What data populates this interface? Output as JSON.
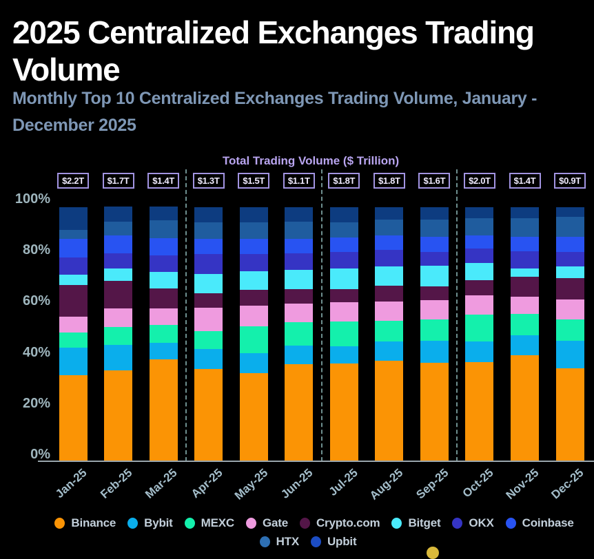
{
  "header": {
    "title": "2025 Centralized Exchanges Trading Volume",
    "subtitle": "Monthly Top 10 Centralized Exchanges Trading Volume, January - December 2025"
  },
  "chart": {
    "axis_title": "Total Trading Volume ($ Trillion)",
    "total_labels": [
      "$2.2T",
      "$1.7T",
      "$1.4T",
      "$1.3T",
      "$1.5T",
      "$1.1T",
      "$1.8T",
      "$1.8T",
      "$1.6T",
      "$2.0T",
      "$1.4T",
      "$0.9T"
    ],
    "y_tick_labels": [
      "100%",
      "80%",
      "60%",
      "40%",
      "20%",
      "0%"
    ]
  },
  "chart_data": {
    "type": "bar",
    "stacked": true,
    "title": "Total Trading Volume ($ Trillion)",
    "unit": "percent share of monthly top-10 trading volume",
    "categories": [
      "Jan-25",
      "Feb-25",
      "Mar-25",
      "Apr-25",
      "May-25",
      "Jun-25",
      "Jul-25",
      "Aug-25",
      "Sep-25",
      "Oct-25",
      "Nov-25",
      "Dec-25"
    ],
    "monthly_totals_trillion_usd": [
      2.2,
      1.7,
      1.4,
      1.3,
      1.5,
      1.1,
      1.8,
      1.8,
      1.6,
      2.0,
      1.4,
      0.9
    ],
    "ylim": [
      0,
      100
    ],
    "grid": false,
    "legend_position": "bottom",
    "quarter_separators_after_index": [
      2,
      5,
      8
    ],
    "series": [
      {
        "name": "Binance",
        "color": "#FB9405",
        "values": [
          33.0,
          34.7,
          38.9,
          35.3,
          33.8,
          37.1,
          37.4,
          38.5,
          37.7,
          38.0,
          40.4,
          35.6
        ]
      },
      {
        "name": "Bybit",
        "color": "#0AAEEC",
        "values": [
          10.5,
          9.9,
          6.3,
          7.5,
          7.4,
          7.2,
          6.5,
          7.4,
          8.4,
          7.7,
          7.8,
          10.5
        ]
      },
      {
        "name": "MEXC",
        "color": "#14F0AC",
        "values": [
          5.7,
          6.8,
          6.8,
          6.9,
          10.5,
          8.8,
          9.4,
          7.9,
          8.1,
          10.3,
          8.1,
          8.1
        ]
      },
      {
        "name": "Gate",
        "color": "#EF9BDF",
        "values": [
          6.2,
          6.9,
          6.3,
          8.9,
          7.7,
          7.2,
          7.5,
          7.2,
          7.3,
          7.5,
          6.7,
          7.7
        ]
      },
      {
        "name": "Crypto.com",
        "color": "#541648",
        "values": [
          11.9,
          10.6,
          7.7,
          5.5,
          6.1,
          5.4,
          5.0,
          6.1,
          5.4,
          5.8,
          7.5,
          8.1
        ]
      },
      {
        "name": "Bitget",
        "color": "#4AEAFB",
        "values": [
          4.1,
          4.9,
          6.3,
          7.5,
          7.2,
          7.5,
          8.0,
          7.4,
          7.8,
          6.6,
          3.3,
          4.5
        ]
      },
      {
        "name": "OKX",
        "color": "#3534C4",
        "values": [
          6.4,
          5.7,
          6.3,
          7.7,
          6.5,
          6.3,
          6.1,
          6.3,
          5.2,
          5.4,
          6.6,
          5.4
        ]
      },
      {
        "name": "Coinbase",
        "color": "#2853F2",
        "values": [
          7.3,
          6.9,
          6.7,
          5.8,
          5.7,
          5.4,
          5.6,
          5.4,
          5.9,
          4.9,
          5.4,
          5.9
        ]
      },
      {
        "name": "HTX",
        "color": "#1F5C9E",
        "legend_color": "#2E70B4",
        "values": [
          3.3,
          5.2,
          6.8,
          6.1,
          6.3,
          6.7,
          5.9,
          6.3,
          6.7,
          6.8,
          7.2,
          7.6
        ]
      },
      {
        "name": "Upbit",
        "color": "#0D3C80",
        "legend_color": "#1C4DC4",
        "values": [
          8.6,
          5.7,
          5.2,
          5.8,
          5.8,
          5.4,
          5.6,
          4.5,
          4.5,
          4.0,
          4.0,
          3.6
        ]
      }
    ]
  },
  "legend": {
    "row1": [
      "Binance",
      "Bybit",
      "MEXC",
      "Gate",
      "Crypto.com",
      "Bitget",
      "OKX",
      "Coinbase"
    ],
    "row2": [
      "HTX",
      "Upbit"
    ]
  }
}
